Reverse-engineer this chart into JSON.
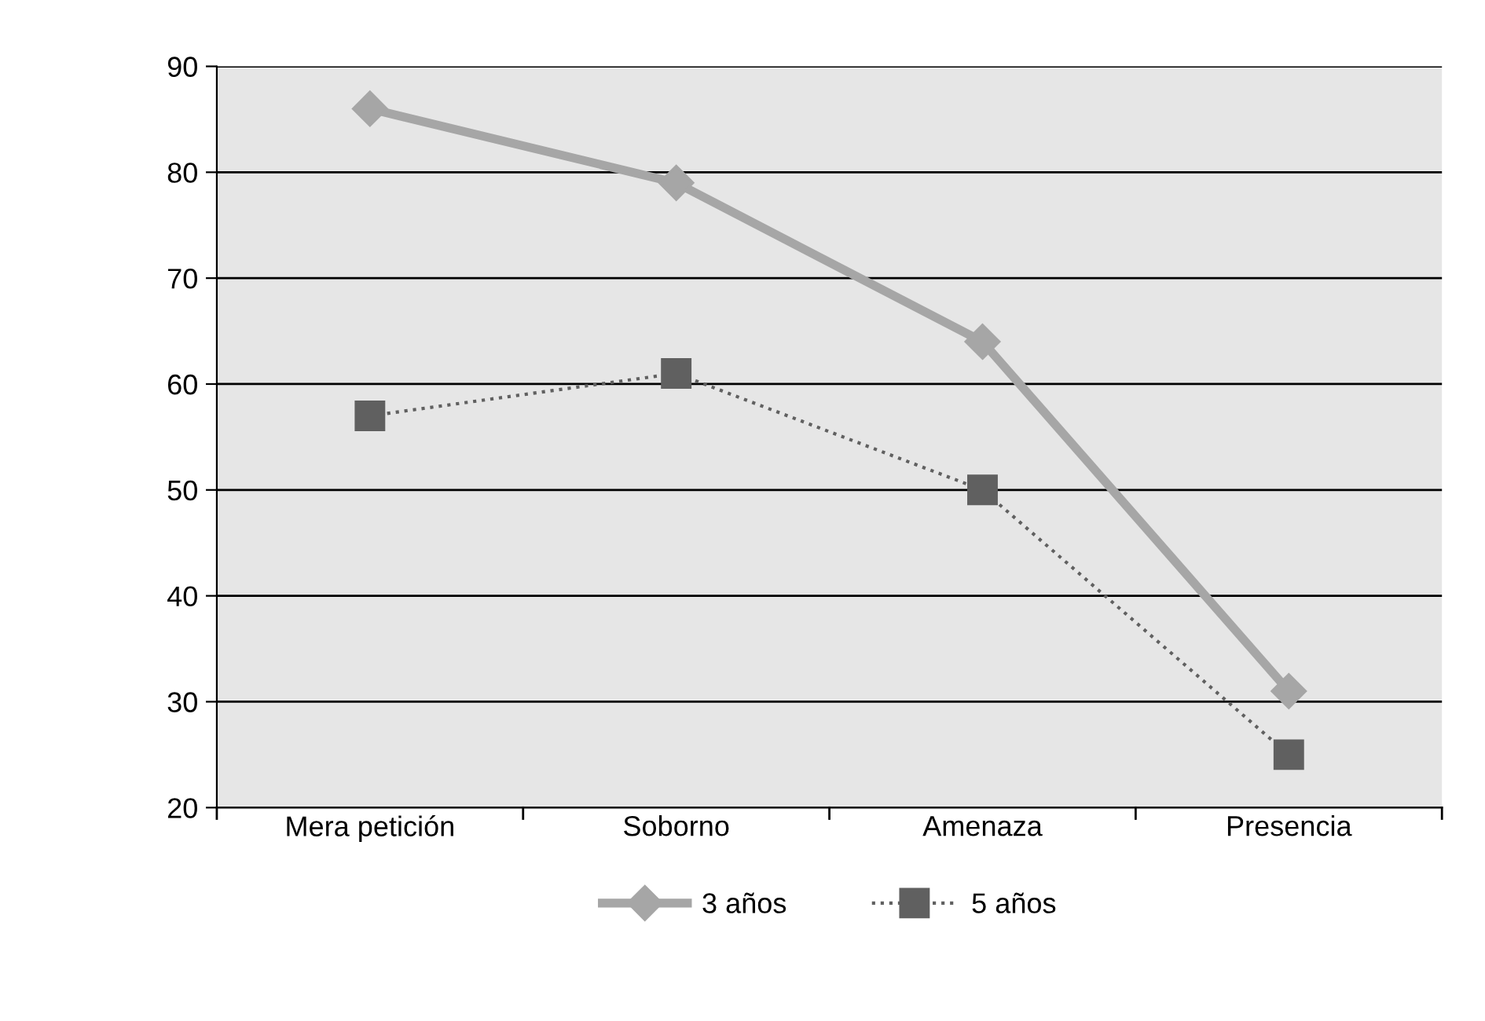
{
  "chart_data": {
    "type": "line",
    "categories": [
      "Mera petición",
      "Soborno",
      "Amenaza",
      "Presencia"
    ],
    "series": [
      {
        "name": "3 años",
        "color": "#a6a6a6",
        "values": [
          86,
          79,
          64,
          31
        ],
        "marker": "diamond",
        "line_style": "solid"
      },
      {
        "name": "5 años",
        "color": "#606060",
        "values": [
          57,
          61,
          50,
          25
        ],
        "marker": "square",
        "line_style": "dotted"
      }
    ],
    "ylim": [
      20,
      90
    ],
    "yticks": [
      20,
      30,
      40,
      50,
      60,
      70,
      80,
      90
    ],
    "grid": "y",
    "legend": "bottom"
  }
}
